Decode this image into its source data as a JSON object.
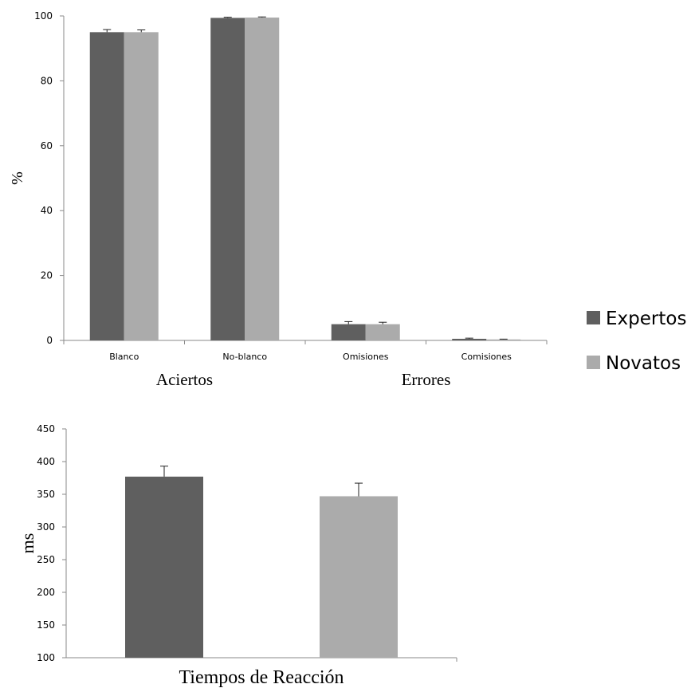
{
  "colors": {
    "expertos": "#5f5f5f",
    "novatos": "#ababab",
    "axis": "#8a8a8a",
    "text": "#000000"
  },
  "legend": {
    "items": [
      {
        "label": "Expertos"
      },
      {
        "label": "Novatos"
      }
    ]
  },
  "chart_data": [
    {
      "type": "bar",
      "ylabel": "%",
      "ylim": [
        0,
        100
      ],
      "yticks": [
        0,
        20,
        40,
        60,
        80,
        100
      ],
      "categories": [
        "Blanco",
        "No-blanco",
        "Omisiones",
        "Comisiones"
      ],
      "groups": [
        "Aciertos",
        "Errores"
      ],
      "series": [
        {
          "name": "Expertos",
          "values": [
            95.0,
            99.4,
            5.0,
            0.5
          ],
          "errors": [
            0.8,
            0.2,
            0.8,
            0.2
          ]
        },
        {
          "name": "Novatos",
          "values": [
            95.0,
            99.5,
            5.0,
            0.3
          ],
          "errors": [
            0.7,
            0.2,
            0.6,
            0.1
          ]
        }
      ],
      "legend_position": "right",
      "grid": false
    },
    {
      "type": "bar",
      "ylabel": "ms",
      "xlabel": "Tiempos de Reacción",
      "ylim": [
        100,
        450
      ],
      "yticks": [
        100,
        150,
        200,
        250,
        300,
        350,
        400,
        450
      ],
      "series": [
        {
          "name": "Expertos",
          "values": [
            377
          ],
          "errors": [
            16
          ]
        },
        {
          "name": "Novatos",
          "values": [
            347
          ],
          "errors": [
            20
          ]
        }
      ],
      "grid": false
    }
  ]
}
